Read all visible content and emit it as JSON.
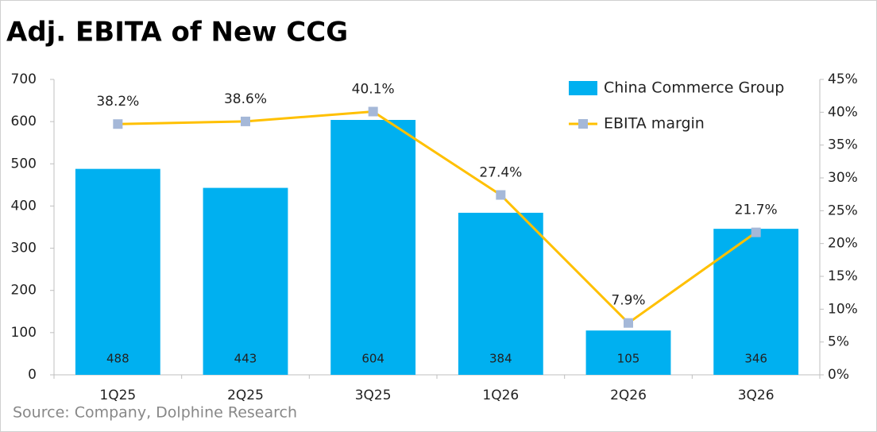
{
  "chart_data": {
    "type": "bar_line",
    "title": "Adj. EBITA of New CCG",
    "source": "Source:  Company, Dolphine Research",
    "categories": [
      "1Q25",
      "2Q25",
      "3Q25",
      "1Q26",
      "2Q26",
      "3Q26"
    ],
    "series": [
      {
        "name": "China Commerce Group",
        "type": "bar",
        "color": "#00b0f0",
        "values": [
          488,
          443,
          604,
          384,
          105,
          346
        ]
      },
      {
        "name": "EBITA margin",
        "type": "line",
        "color": "#ffc000",
        "marker_color": "#a5b8d8",
        "axis": "y2",
        "values": [
          38.2,
          38.6,
          40.1,
          27.4,
          7.9,
          21.7
        ],
        "value_labels": [
          "38.2%",
          "38.6%",
          "40.1%",
          "27.4%",
          "7.9%",
          "21.7%"
        ]
      }
    ],
    "ylim": [
      0,
      700
    ],
    "yticks": [
      0,
      100,
      200,
      300,
      400,
      500,
      600,
      700
    ],
    "y2lim": [
      0,
      45
    ],
    "y2ticks": [
      {
        "value": 0,
        "label": "0%"
      },
      {
        "value": 5,
        "label": "5%"
      },
      {
        "value": 10,
        "label": "10%"
      },
      {
        "value": 15,
        "label": "15%"
      },
      {
        "value": 20,
        "label": "20%"
      },
      {
        "value": 25,
        "label": "25%"
      },
      {
        "value": 30,
        "label": "30%"
      },
      {
        "value": 35,
        "label": "35%"
      },
      {
        "value": 40,
        "label": "40%"
      },
      {
        "value": 45,
        "label": "45%"
      }
    ],
    "grid": false,
    "legend": "upper right"
  }
}
